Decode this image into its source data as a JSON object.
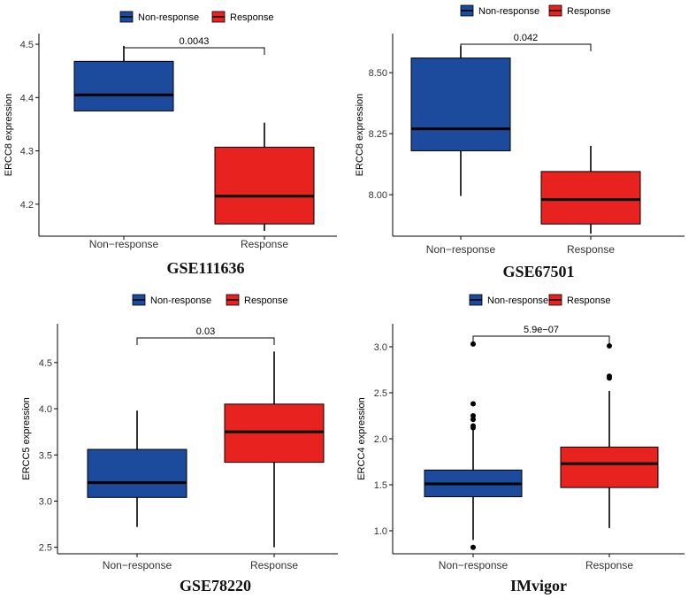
{
  "colors": {
    "non_response": "#1c4a9c",
    "response": "#e8221f",
    "median": "#000000",
    "axis": "#000000"
  },
  "chart_data": [
    {
      "type": "box",
      "title": "GSE111636",
      "ylabel": "ERCC8 expression",
      "categories": [
        "Non−response",
        "Response"
      ],
      "legend": [
        "Non-response",
        "Response"
      ],
      "ylim": [
        4.14,
        4.52
      ],
      "yticks": [
        4.2,
        4.3,
        4.4,
        4.5
      ],
      "ytick_labels": [
        "4.2",
        "4.3",
        "4.4",
        "4.5"
      ],
      "p_value": "0.0043",
      "boxes": [
        {
          "low": 4.375,
          "q1": 4.375,
          "median": 4.405,
          "q3": 4.468,
          "high": 4.497,
          "outliers": []
        },
        {
          "low": 4.15,
          "q1": 4.163,
          "median": 4.215,
          "q3": 4.307,
          "high": 4.353,
          "outliers": []
        }
      ]
    },
    {
      "type": "box",
      "title": "GSE67501",
      "ylabel": "ERCC8 expression",
      "categories": [
        "Non−response",
        "Response"
      ],
      "legend": [
        "Non-response",
        "Response"
      ],
      "ylim": [
        7.83,
        8.66
      ],
      "yticks": [
        8.0,
        8.25,
        8.5
      ],
      "ytick_labels": [
        "8.00",
        "8.25",
        "8.50"
      ],
      "p_value": "0.042",
      "boxes": [
        {
          "low": 7.995,
          "q1": 8.18,
          "median": 8.27,
          "q3": 8.56,
          "high": 8.61,
          "outliers": []
        },
        {
          "low": 7.84,
          "q1": 7.88,
          "median": 7.98,
          "q3": 8.095,
          "high": 8.2,
          "outliers": []
        }
      ]
    },
    {
      "type": "box",
      "title": "GSE78220",
      "ylabel": "ERCC5 expression",
      "categories": [
        "Non−response",
        "Response"
      ],
      "legend": [
        "Non-response",
        "Response"
      ],
      "ylim": [
        2.43,
        4.92
      ],
      "yticks": [
        2.5,
        3.0,
        3.5,
        4.0,
        4.5
      ],
      "ytick_labels": [
        "2.5",
        "3.0",
        "3.5",
        "4.0",
        "4.5"
      ],
      "p_value": "0.03",
      "boxes": [
        {
          "low": 2.72,
          "q1": 3.04,
          "median": 3.2,
          "q3": 3.56,
          "high": 3.98,
          "outliers": []
        },
        {
          "low": 2.5,
          "q1": 3.42,
          "median": 3.75,
          "q3": 4.05,
          "high": 4.62,
          "outliers": []
        }
      ]
    },
    {
      "type": "box",
      "title": "IMvigor",
      "ylabel": "ERCC4 expression",
      "categories": [
        "Non−response",
        "Response"
      ],
      "legend": [
        "Non-response",
        "Response"
      ],
      "ylim": [
        0.75,
        3.25
      ],
      "yticks": [
        1.0,
        1.5,
        2.0,
        2.5,
        3.0
      ],
      "ytick_labels": [
        "1.0",
        "1.5",
        "2.0",
        "2.5",
        "3.0"
      ],
      "p_value": "5.9e−07",
      "boxes": [
        {
          "low": 0.9,
          "q1": 1.37,
          "median": 1.51,
          "q3": 1.66,
          "high": 2.1,
          "outliers": [
            0.82,
            2.12,
            2.14,
            2.21,
            2.25,
            2.38,
            3.03
          ]
        },
        {
          "low": 1.03,
          "q1": 1.47,
          "median": 1.73,
          "q3": 1.91,
          "high": 2.52,
          "outliers": [
            2.66,
            2.68,
            3.01
          ]
        }
      ]
    }
  ]
}
